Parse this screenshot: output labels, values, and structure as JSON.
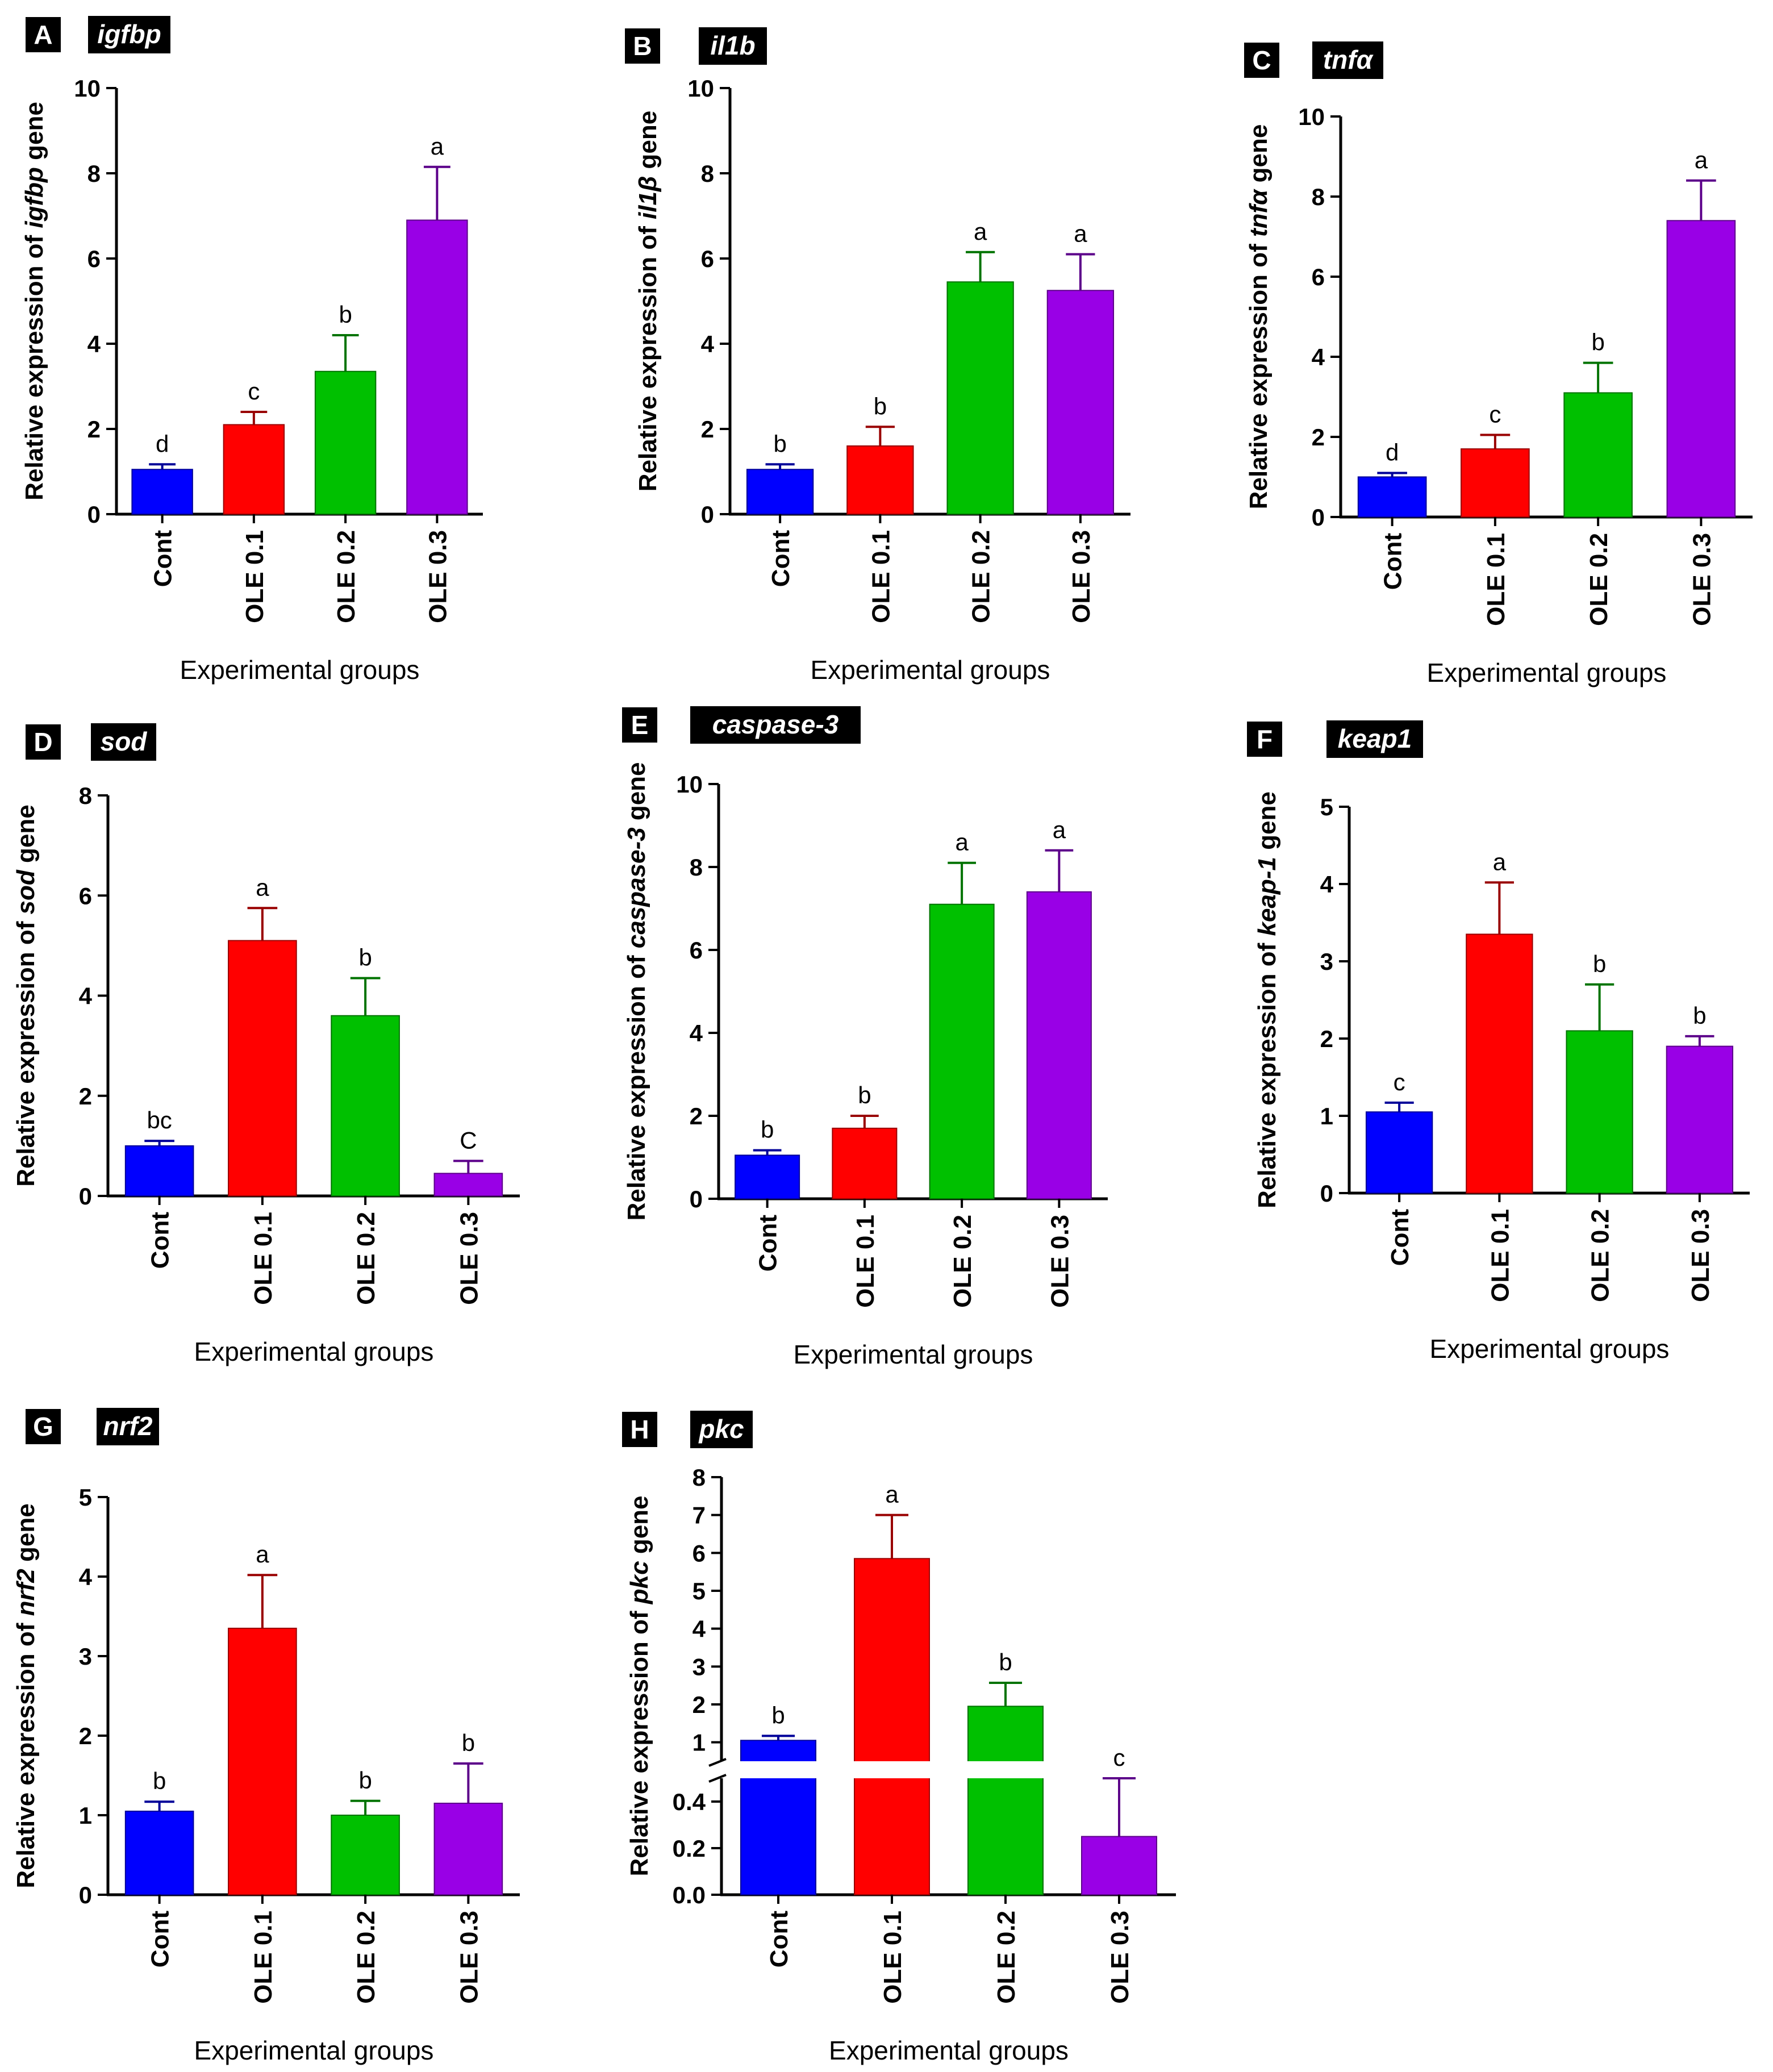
{
  "figure": {
    "x_axis_label": "Experimental groups",
    "colors": [
      "#0000ff",
      "#ff0000",
      "#00c000",
      "#9900e6"
    ]
  },
  "chart_data": [
    {
      "panel": "A",
      "title": "igfbp",
      "type": "bar",
      "ylabel_prefix": "Relative expression of",
      "ylabel_gene": "igfbp",
      "ylabel_suffix": "gene",
      "categories": [
        "Cont",
        "OLE 0.1",
        "OLE 0.2",
        "OLE 0.3"
      ],
      "values": [
        1.05,
        2.1,
        3.35,
        6.9
      ],
      "errors": [
        0.12,
        0.3,
        0.85,
        1.25
      ],
      "labels": [
        "d",
        "c",
        "b",
        "a"
      ],
      "ylim": [
        0,
        10
      ],
      "yticks": [
        0,
        2,
        4,
        6,
        8,
        10
      ],
      "ytick_labels": [
        "0",
        "2",
        "4",
        "6",
        "8",
        "10"
      ],
      "xlabel": "Experimental groups"
    },
    {
      "panel": "B",
      "title": "il1b",
      "type": "bar",
      "ylabel_prefix": "Relative expression of",
      "ylabel_gene": "il1β",
      "ylabel_suffix": "gene",
      "categories": [
        "Cont",
        "OLE 0.1",
        "OLE 0.2",
        "OLE 0.3"
      ],
      "values": [
        1.05,
        1.6,
        5.45,
        5.25
      ],
      "errors": [
        0.12,
        0.45,
        0.7,
        0.85
      ],
      "labels": [
        "b",
        "b",
        "a",
        "a"
      ],
      "ylim": [
        0,
        10
      ],
      "yticks": [
        0,
        2,
        4,
        6,
        8,
        10
      ],
      "ytick_labels": [
        "0",
        "2",
        "4",
        "6",
        "8",
        "10"
      ],
      "xlabel": "Experimental groups"
    },
    {
      "panel": "C",
      "title": "tnfα",
      "type": "bar",
      "ylabel_prefix": "Relative expression of",
      "ylabel_gene": "tnfα",
      "ylabel_suffix": "gene",
      "categories": [
        "Cont",
        "OLE 0.1",
        "OLE 0.2",
        "OLE 0.3"
      ],
      "values": [
        1.0,
        1.7,
        3.1,
        7.4
      ],
      "errors": [
        0.1,
        0.35,
        0.75,
        1.0
      ],
      "labels": [
        "d",
        "c",
        "b",
        "a"
      ],
      "ylim": [
        0,
        10
      ],
      "yticks": [
        0,
        2,
        4,
        6,
        8,
        10
      ],
      "ytick_labels": [
        "0",
        "2",
        "4",
        "6",
        "8",
        "10"
      ],
      "xlabel": "Experimental groups"
    },
    {
      "panel": "D",
      "title": "sod",
      "type": "bar",
      "ylabel_prefix": "Relative expression of",
      "ylabel_gene": "sod",
      "ylabel_suffix": "gene",
      "categories": [
        "Cont",
        "OLE 0.1",
        "OLE 0.2",
        "OLE 0.3"
      ],
      "values": [
        1.0,
        5.1,
        3.6,
        0.45
      ],
      "errors": [
        0.1,
        0.65,
        0.75,
        0.25
      ],
      "labels": [
        "bc",
        "a",
        "b",
        "C"
      ],
      "ylim": [
        0,
        8
      ],
      "yticks": [
        0,
        2,
        4,
        6,
        8
      ],
      "ytick_labels": [
        "0",
        "2",
        "4",
        "6",
        "8"
      ],
      "xlabel": "Experimental groups"
    },
    {
      "panel": "E",
      "title": "caspase-3",
      "type": "bar",
      "ylabel_prefix": "Relative expression of",
      "ylabel_gene": "caspase-3",
      "ylabel_suffix": "gene",
      "categories": [
        "Cont",
        "OLE 0.1",
        "OLE 0.2",
        "OLE 0.3"
      ],
      "values": [
        1.05,
        1.7,
        7.1,
        7.4
      ],
      "errors": [
        0.12,
        0.3,
        1.0,
        1.0
      ],
      "labels": [
        "b",
        "b",
        "a",
        "a"
      ],
      "ylim": [
        0,
        10
      ],
      "yticks": [
        0,
        2,
        4,
        6,
        8,
        10
      ],
      "ytick_labels": [
        "0",
        "2",
        "4",
        "6",
        "8",
        "10"
      ],
      "xlabel": "Experimental groups"
    },
    {
      "panel": "F",
      "title": "keap1",
      "type": "bar",
      "ylabel_prefix": "Relative expression of",
      "ylabel_gene": "keap-1",
      "ylabel_suffix": "gene",
      "categories": [
        "Cont",
        "OLE 0.1",
        "OLE 0.2",
        "OLE 0.3"
      ],
      "values": [
        1.05,
        3.35,
        2.1,
        1.9
      ],
      "errors": [
        0.12,
        0.67,
        0.6,
        0.13
      ],
      "labels": [
        "c",
        "a",
        "b",
        "b"
      ],
      "ylim": [
        0,
        5
      ],
      "yticks": [
        0,
        1,
        2,
        3,
        4,
        5
      ],
      "ytick_labels": [
        "0",
        "1",
        "2",
        "3",
        "4",
        "5"
      ],
      "xlabel": "Experimental groups"
    },
    {
      "panel": "G",
      "title": "nrf2",
      "type": "bar",
      "ylabel_prefix": "Relative expression of",
      "ylabel_gene": "nrf2",
      "ylabel_suffix": "gene",
      "categories": [
        "Cont",
        "OLE 0.1",
        "OLE 0.2",
        "OLE 0.3"
      ],
      "values": [
        1.05,
        3.35,
        1.0,
        1.15
      ],
      "errors": [
        0.12,
        0.67,
        0.18,
        0.5
      ],
      "labels": [
        "b",
        "a",
        "b",
        "b"
      ],
      "ylim": [
        0,
        5
      ],
      "yticks": [
        0,
        1,
        2,
        3,
        4,
        5
      ],
      "ytick_labels": [
        "0",
        "1",
        "2",
        "3",
        "4",
        "5"
      ],
      "xlabel": "Experimental groups"
    },
    {
      "panel": "H",
      "title": "pkc",
      "type": "bar",
      "broken_axis": true,
      "ylabel_prefix": "Relative expression of",
      "ylabel_gene": "pkc",
      "ylabel_suffix": "gene",
      "categories": [
        "Cont",
        "OLE 0.1",
        "OLE 0.2",
        "OLE 0.3"
      ],
      "values": [
        1.05,
        5.85,
        1.95,
        0.25
      ],
      "errors": [
        0.12,
        1.15,
        0.62,
        0.25
      ],
      "labels": [
        "b",
        "a",
        "b",
        "c"
      ],
      "ylim_lower": [
        0,
        0.5
      ],
      "ylim_upper": [
        0.5,
        8
      ],
      "yticks_lower": [
        0,
        0.2,
        0.4
      ],
      "ytick_labels_lower": [
        "0.0",
        "0.2",
        "0.4"
      ],
      "yticks_upper": [
        1,
        2,
        3,
        4,
        5,
        6,
        7,
        8
      ],
      "ytick_labels_upper": [
        "1",
        "2",
        "3",
        "4",
        "5",
        "6",
        "7",
        "8"
      ],
      "xlabel": "Experimental groups"
    }
  ]
}
